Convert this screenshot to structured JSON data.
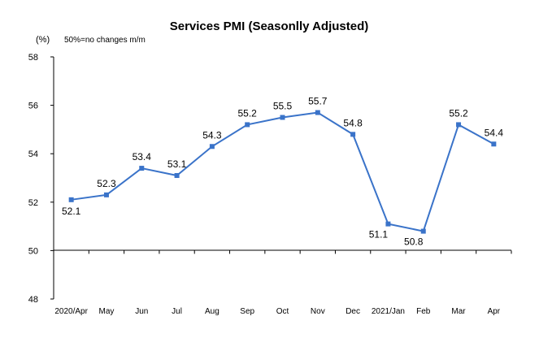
{
  "chart_data": {
    "type": "line",
    "title": "Services PMI (Seasonlly Adjusted)",
    "unit_label": "(%)",
    "note": "50%=no changes  m/m",
    "categories": [
      "2020/Apr",
      "May",
      "Jun",
      "Jul",
      "Aug",
      "Sep",
      "Oct",
      "Nov",
      "Dec",
      "2021/Jan",
      "Feb",
      "Mar",
      "Apr"
    ],
    "series": [
      {
        "values": [
          52.1,
          52.3,
          53.4,
          53.1,
          54.3,
          55.2,
          55.5,
          55.7,
          54.8,
          51.1,
          50.8,
          55.2,
          54.4
        ],
        "labels": [
          "52.1",
          "52.3",
          "53.4",
          "53.1",
          "54.3",
          "55.2",
          "55.5",
          "55.7",
          "54.8",
          "51.1",
          "50.8",
          "55.2",
          "54.4"
        ],
        "color": "#3a73c9"
      }
    ],
    "yticks": [
      "48",
      "50",
      "52",
      "54",
      "56",
      "58"
    ],
    "ylim": [
      48,
      58
    ],
    "reference_line": 50,
    "grid": false,
    "legend": "none"
  }
}
